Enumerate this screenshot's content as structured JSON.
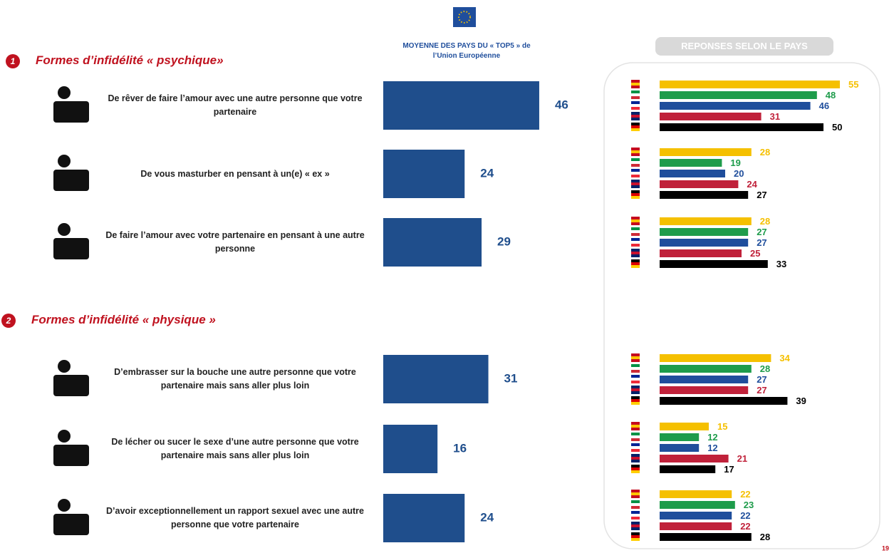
{
  "sections": [
    {
      "number": "1",
      "title": "Formes d’infidélité « psychique»"
    },
    {
      "number": "2",
      "title": "Formes d’infidélité « physique »"
    }
  ],
  "page_number": "19",
  "chart_data": [
    {
      "type": "hbar",
      "title": "MOYENNE DES PAYS DU « TOP5 » de l’Union Européenne",
      "categories": [
        "De rêver de faire l’amour avec une autre personne que votre partenaire",
        "De vous masturber en pensant à un(e) « ex »",
        "De faire l’amour avec votre partenaire en pensant à une autre personne",
        "D’embrasser sur la bouche une autre personne que votre partenaire mais sans aller plus loin",
        "De lécher ou sucer le sexe d’une autre personne que votre partenaire mais sans aller plus loin",
        "D’avoir exceptionnellement un rapport sexuel avec une autre personne que votre partenaire"
      ],
      "values": [
        46,
        24,
        29,
        31,
        16,
        24
      ],
      "color": "#1f4e8c"
    },
    {
      "type": "grouped-hbar",
      "title": "REPONSES SELON LE PAYS",
      "series": [
        {
          "color": "#f5c000",
          "values": [
            55,
            28,
            28,
            34,
            15,
            22
          ]
        },
        {
          "color": "#1e9c4b",
          "values": [
            48,
            19,
            27,
            28,
            12,
            23
          ]
        },
        {
          "color": "#1f4e9c",
          "values": [
            46,
            20,
            27,
            27,
            12,
            22
          ]
        },
        {
          "color": "#c0213a",
          "values": [
            31,
            24,
            25,
            27,
            21,
            22
          ]
        },
        {
          "color": "#000000",
          "values": [
            50,
            27,
            33,
            39,
            17,
            28
          ]
        }
      ]
    }
  ]
}
